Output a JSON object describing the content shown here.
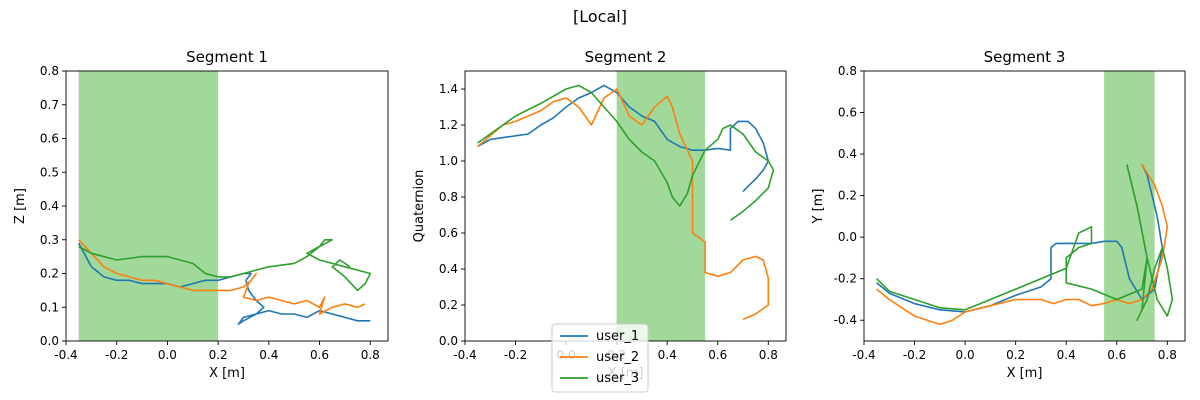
{
  "figure": {
    "suptitle": "[Local]"
  },
  "colors": {
    "user_1": "#1f77b4",
    "user_2": "#ff7f0e",
    "user_3": "#2ca02c",
    "band": "#a0d99a"
  },
  "legend": {
    "placement": "bottom-center, overlapping Segment 2 x-axis",
    "entries": [
      "user_1",
      "user_2",
      "user_3"
    ]
  },
  "chart_data": [
    {
      "type": "line",
      "title": "Segment 1",
      "xlabel": "X [m]",
      "ylabel": "Z [m]",
      "xlim": [
        -0.4,
        0.87
      ],
      "ylim": [
        0,
        0.8
      ],
      "xticks": [
        "-0.4",
        "-0.2",
        "0.0",
        "0.2",
        "0.4",
        "0.6",
        "0.8"
      ],
      "yticks": [
        "0.0",
        "0.1",
        "0.2",
        "0.3",
        "0.4",
        "0.5",
        "0.6",
        "0.7",
        "0.8"
      ],
      "xtick_values": [
        -0.4,
        -0.2,
        0,
        0.2,
        0.4,
        0.6,
        0.8
      ],
      "ytick_values": [
        0,
        0.1,
        0.2,
        0.3,
        0.4,
        0.5,
        0.6,
        0.7,
        0.8
      ],
      "band": [
        -0.35,
        0.2
      ],
      "series": [
        {
          "name": "user_1",
          "x": [
            -0.35,
            -0.3,
            -0.25,
            -0.2,
            -0.15,
            -0.1,
            -0.05,
            0.0,
            0.05,
            0.1,
            0.15,
            0.2,
            0.25,
            0.3,
            0.33,
            0.31,
            0.32,
            0.35,
            0.38,
            0.35,
            0.3,
            0.28,
            0.3,
            0.35,
            0.4,
            0.45,
            0.5,
            0.55,
            0.6,
            0.65,
            0.7,
            0.75,
            0.8
          ],
          "y": [
            0.29,
            0.22,
            0.19,
            0.18,
            0.18,
            0.17,
            0.17,
            0.17,
            0.16,
            0.17,
            0.18,
            0.18,
            0.19,
            0.2,
            0.2,
            0.18,
            0.15,
            0.12,
            0.1,
            0.08,
            0.06,
            0.05,
            0.07,
            0.08,
            0.09,
            0.08,
            0.08,
            0.07,
            0.09,
            0.08,
            0.07,
            0.06,
            0.06
          ]
        },
        {
          "name": "user_2",
          "x": [
            -0.35,
            -0.3,
            -0.25,
            -0.2,
            -0.15,
            -0.1,
            -0.05,
            0.0,
            0.05,
            0.1,
            0.15,
            0.2,
            0.25,
            0.3,
            0.33,
            0.35,
            0.32,
            0.3,
            0.35,
            0.4,
            0.45,
            0.5,
            0.55,
            0.6,
            0.62,
            0.6,
            0.65,
            0.7,
            0.75,
            0.78
          ],
          "y": [
            0.3,
            0.26,
            0.22,
            0.2,
            0.19,
            0.18,
            0.18,
            0.17,
            0.16,
            0.15,
            0.15,
            0.15,
            0.15,
            0.16,
            0.18,
            0.2,
            0.17,
            0.13,
            0.12,
            0.13,
            0.12,
            0.11,
            0.12,
            0.1,
            0.13,
            0.08,
            0.1,
            0.11,
            0.1,
            0.11
          ]
        },
        {
          "name": "user_3",
          "x": [
            -0.35,
            -0.3,
            -0.2,
            -0.1,
            0.0,
            0.05,
            0.1,
            0.15,
            0.2,
            0.25,
            0.3,
            0.35,
            0.4,
            0.5,
            0.55,
            0.6,
            0.62,
            0.65,
            0.6,
            0.55,
            0.6,
            0.65,
            0.7,
            0.75,
            0.8,
            0.78,
            0.75,
            0.7,
            0.65,
            0.68,
            0.72
          ],
          "y": [
            0.28,
            0.26,
            0.24,
            0.25,
            0.25,
            0.24,
            0.23,
            0.2,
            0.19,
            0.19,
            0.2,
            0.21,
            0.22,
            0.23,
            0.25,
            0.28,
            0.3,
            0.3,
            0.28,
            0.26,
            0.24,
            0.23,
            0.22,
            0.21,
            0.2,
            0.17,
            0.15,
            0.19,
            0.22,
            0.24,
            0.22
          ]
        }
      ]
    },
    {
      "type": "line",
      "title": "Segment 2",
      "xlabel": "X [m]",
      "ylabel": "Quaternion",
      "xlim": [
        -0.4,
        0.87
      ],
      "ylim": [
        0,
        1.5
      ],
      "xticks": [
        "-0.4",
        "-0.2",
        "0.0",
        "0.2",
        "0.4",
        "0.6",
        "0.8"
      ],
      "yticks": [
        "0.0",
        "0.2",
        "0.4",
        "0.6",
        "0.8",
        "1.0",
        "1.2",
        "1.4"
      ],
      "xtick_values": [
        -0.4,
        -0.2,
        0,
        0.2,
        0.4,
        0.6,
        0.8
      ],
      "ytick_values": [
        0,
        0.2,
        0.4,
        0.6,
        0.8,
        1.0,
        1.2,
        1.4
      ],
      "band": [
        0.2,
        0.55
      ],
      "series": [
        {
          "name": "user_1",
          "x": [
            -0.35,
            -0.3,
            -0.2,
            -0.15,
            -0.1,
            -0.05,
            0.0,
            0.05,
            0.1,
            0.15,
            0.2,
            0.25,
            0.3,
            0.35,
            0.4,
            0.45,
            0.5,
            0.55,
            0.6,
            0.65,
            0.65,
            0.68,
            0.72,
            0.75,
            0.78,
            0.8,
            0.78,
            0.75,
            0.72,
            0.7
          ],
          "y": [
            1.08,
            1.12,
            1.14,
            1.15,
            1.2,
            1.24,
            1.3,
            1.35,
            1.38,
            1.42,
            1.38,
            1.3,
            1.25,
            1.22,
            1.12,
            1.08,
            1.06,
            1.06,
            1.07,
            1.06,
            1.18,
            1.22,
            1.22,
            1.18,
            1.1,
            1.0,
            0.95,
            0.9,
            0.86,
            0.83
          ]
        },
        {
          "name": "user_2",
          "x": [
            -0.35,
            -0.3,
            -0.25,
            -0.2,
            -0.15,
            -0.1,
            -0.05,
            0.0,
            0.05,
            0.1,
            0.15,
            0.2,
            0.25,
            0.3,
            0.35,
            0.4,
            0.42,
            0.45,
            0.5,
            0.5,
            0.55,
            0.55,
            0.6,
            0.65,
            0.7,
            0.75,
            0.78,
            0.8,
            0.8,
            0.75,
            0.7
          ],
          "y": [
            1.08,
            1.14,
            1.2,
            1.22,
            1.25,
            1.28,
            1.33,
            1.35,
            1.3,
            1.2,
            1.35,
            1.4,
            1.25,
            1.2,
            1.3,
            1.36,
            1.3,
            1.15,
            1.0,
            0.6,
            0.55,
            0.38,
            0.36,
            0.38,
            0.45,
            0.47,
            0.45,
            0.35,
            0.2,
            0.15,
            0.12
          ]
        },
        {
          "name": "user_3",
          "x": [
            -0.35,
            -0.3,
            -0.2,
            -0.1,
            0.0,
            0.05,
            0.1,
            0.15,
            0.2,
            0.25,
            0.3,
            0.35,
            0.4,
            0.42,
            0.45,
            0.48,
            0.5,
            0.55,
            0.6,
            0.62,
            0.65,
            0.7,
            0.75,
            0.8,
            0.82,
            0.8,
            0.75,
            0.7,
            0.65
          ],
          "y": [
            1.1,
            1.15,
            1.25,
            1.32,
            1.4,
            1.42,
            1.38,
            1.3,
            1.22,
            1.12,
            1.05,
            1.0,
            0.88,
            0.8,
            0.75,
            0.82,
            0.92,
            1.06,
            1.12,
            1.18,
            1.2,
            1.15,
            1.05,
            1.0,
            0.95,
            0.85,
            0.78,
            0.72,
            0.67
          ]
        }
      ]
    },
    {
      "type": "line",
      "title": "Segment 3",
      "xlabel": "X [m]",
      "ylabel": "Y [m]",
      "xlim": [
        -0.4,
        0.87
      ],
      "ylim": [
        -0.5,
        0.8
      ],
      "xticks": [
        "-0.4",
        "-0.2",
        "0.0",
        "0.2",
        "0.4",
        "0.6",
        "0.8"
      ],
      "yticks": [
        "-0.4",
        "-0.2",
        "0.0",
        "0.2",
        "0.4",
        "0.6",
        "0.8"
      ],
      "xtick_values": [
        -0.4,
        -0.2,
        0,
        0.2,
        0.4,
        0.6,
        0.8
      ],
      "ytick_values": [
        -0.4,
        -0.2,
        0,
        0.2,
        0.4,
        0.6,
        0.8
      ],
      "band": [
        0.55,
        0.75
      ],
      "series": [
        {
          "name": "user_1",
          "x": [
            -0.35,
            -0.3,
            -0.2,
            -0.1,
            0.0,
            0.1,
            0.2,
            0.3,
            0.34,
            0.34,
            0.36,
            0.4,
            0.5,
            0.55,
            0.6,
            0.62,
            0.65,
            0.7,
            0.75,
            0.78,
            0.76,
            0.74,
            0.72,
            0.7
          ],
          "y": [
            -0.22,
            -0.27,
            -0.32,
            -0.35,
            -0.36,
            -0.33,
            -0.28,
            -0.24,
            -0.2,
            -0.05,
            -0.03,
            -0.03,
            -0.03,
            -0.02,
            -0.02,
            -0.05,
            -0.2,
            -0.3,
            -0.25,
            -0.05,
            0.1,
            0.2,
            0.3,
            0.35
          ]
        },
        {
          "name": "user_2",
          "x": [
            -0.35,
            -0.3,
            -0.2,
            -0.1,
            -0.05,
            0.0,
            0.1,
            0.2,
            0.3,
            0.35,
            0.4,
            0.45,
            0.5,
            0.55,
            0.6,
            0.65,
            0.7,
            0.74,
            0.78,
            0.8,
            0.78,
            0.75,
            0.7
          ],
          "y": [
            -0.25,
            -0.3,
            -0.38,
            -0.42,
            -0.4,
            -0.36,
            -0.33,
            -0.3,
            -0.3,
            -0.32,
            -0.3,
            -0.3,
            -0.33,
            -0.32,
            -0.3,
            -0.32,
            -0.3,
            -0.25,
            -0.1,
            0.05,
            0.15,
            0.25,
            0.35
          ]
        },
        {
          "name": "user_3",
          "x": [
            -0.35,
            -0.3,
            -0.2,
            -0.1,
            0.0,
            0.1,
            0.2,
            0.3,
            0.4,
            0.45,
            0.5,
            0.5,
            0.45,
            0.4,
            0.4,
            0.5,
            0.6,
            0.7,
            0.72,
            0.7,
            0.68,
            0.72,
            0.75,
            0.78,
            0.8,
            0.82,
            0.8,
            0.76,
            0.72,
            0.68,
            0.64
          ],
          "y": [
            -0.2,
            -0.26,
            -0.3,
            -0.34,
            -0.35,
            -0.3,
            -0.25,
            -0.2,
            -0.15,
            0.02,
            0.05,
            -0.03,
            -0.05,
            -0.1,
            -0.22,
            -0.25,
            -0.3,
            -0.25,
            -0.1,
            -0.35,
            -0.4,
            -0.3,
            -0.15,
            -0.05,
            -0.15,
            -0.3,
            -0.38,
            -0.3,
            -0.1,
            0.15,
            0.35
          ]
        }
      ]
    }
  ]
}
